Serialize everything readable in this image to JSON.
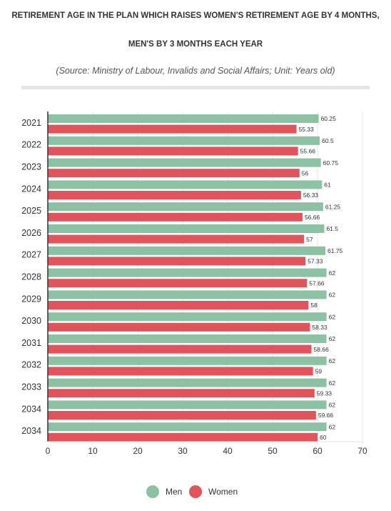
{
  "header": {
    "title_line1": "RETIREMENT AGE IN THE PLAN WHICH RAISES WOMEN'S RETIREMENT AGE BY 4 MONTHS,",
    "title_line2": "MEN'S BY 3 MONTHS EACH YEAR",
    "subtitle": "(Source: Ministry of Labour, Invalids and Social Affairs; Unit: Years old)"
  },
  "colors": {
    "men": "#8cc2a3",
    "women": "#e0545b",
    "grid": "#e6e6e6",
    "axis": "#333333"
  },
  "chart_data": {
    "type": "bar",
    "orientation": "horizontal",
    "categories": [
      "2021",
      "2022",
      "2023",
      "2024",
      "2025",
      "2026",
      "2027",
      "2028",
      "2029",
      "2030",
      "2031",
      "2032",
      "2033",
      "2034",
      "2034"
    ],
    "series": [
      {
        "name": "Men",
        "values": [
          60.25,
          60.5,
          60.75,
          61,
          61.25,
          61.5,
          61.75,
          62,
          62,
          62,
          62,
          62,
          62,
          62,
          62
        ],
        "labels": [
          "60.25",
          "60.5",
          "60.75",
          "61",
          "61.25",
          "61.5",
          "61.75",
          "62",
          "62",
          "62",
          "62",
          "62",
          "62",
          "62",
          "62"
        ]
      },
      {
        "name": "Women",
        "values": [
          55.33,
          55.66,
          56,
          56.33,
          56.66,
          57,
          57.33,
          57.66,
          58,
          58.33,
          58.66,
          59,
          59.33,
          59.66,
          60
        ],
        "labels": [
          "55.33",
          "55.66",
          "56",
          "56.33",
          "56.66",
          "57",
          "57.33",
          "57.66",
          "58",
          "58.33",
          "58.66",
          "59",
          "59.33",
          "59.66",
          "60"
        ]
      }
    ],
    "xlim": [
      0,
      70
    ],
    "xticks": [
      "0",
      "10",
      "20",
      "30",
      "40",
      "50",
      "60",
      "70"
    ],
    "grid": true,
    "legend_position": "bottom-center"
  }
}
